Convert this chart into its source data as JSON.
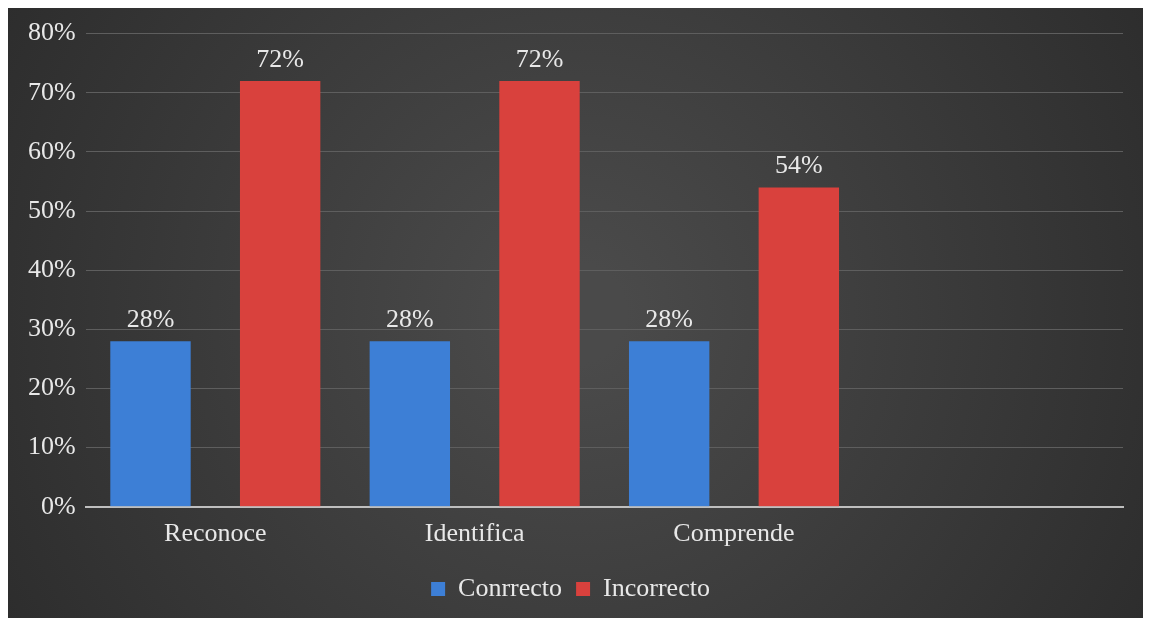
{
  "chart_data": {
    "type": "bar",
    "categories": [
      "Reconoce",
      "Identifica",
      "Comprende",
      null
    ],
    "series": [
      {
        "name": "Conrrecto",
        "color": "#3d7fd6",
        "values": [
          28,
          28,
          28,
          null
        ],
        "value_labels": [
          "28%",
          "28%",
          "28%",
          null
        ]
      },
      {
        "name": "Incorrecto",
        "color": "#d9413d",
        "values": [
          72,
          72,
          54,
          null
        ],
        "value_labels": [
          "72%",
          "72%",
          "54%",
          null
        ]
      }
    ],
    "ylim": [
      0,
      80
    ],
    "yticks": [
      {
        "value": 0,
        "label": "0%"
      },
      {
        "value": 10,
        "label": "10%"
      },
      {
        "value": 20,
        "label": "20%"
      },
      {
        "value": 30,
        "label": "30%"
      },
      {
        "value": 40,
        "label": "40%"
      },
      {
        "value": 50,
        "label": "50%"
      },
      {
        "value": 60,
        "label": "60%"
      },
      {
        "value": 70,
        "label": "70%"
      },
      {
        "value": 80,
        "label": "80%"
      }
    ],
    "grid": "y",
    "legend": "bottom"
  }
}
